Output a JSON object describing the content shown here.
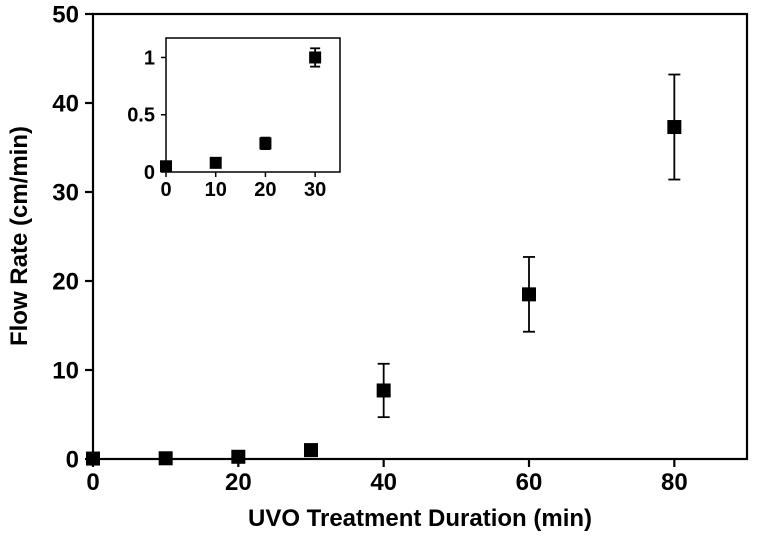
{
  "chart_data": {
    "type": "scatter",
    "title": "",
    "xlabel": "UVO Treatment Duration (min)",
    "ylabel": "Flow Rate (cm/min)",
    "xlim": [
      0,
      90
    ],
    "ylim": [
      0,
      50
    ],
    "xticks": [
      0,
      20,
      40,
      60,
      80
    ],
    "yticks": [
      0,
      10,
      20,
      30,
      40,
      50
    ],
    "grid": false,
    "legend": "none",
    "marker": "filled-square",
    "marker_color": "#000000",
    "error_bars": true,
    "series": [
      {
        "name": "flow-rate-vs-uvo-duration",
        "points": [
          {
            "x": 0,
            "y": 0.05,
            "err": 0
          },
          {
            "x": 10,
            "y": 0.08,
            "err": 0
          },
          {
            "x": 20,
            "y": 0.25,
            "err": 0.05
          },
          {
            "x": 30,
            "y": 1.0,
            "err": 0.08
          },
          {
            "x": 40,
            "y": 7.7,
            "err": 3.0
          },
          {
            "x": 60,
            "y": 18.5,
            "err": 4.2
          },
          {
            "x": 80,
            "y": 37.3,
            "err": 5.9
          }
        ]
      }
    ],
    "inset": {
      "description": "zoomed view of 0-30 min region of the same series",
      "xlim": [
        0,
        35
      ],
      "ylim": [
        0,
        1.17
      ],
      "xticks": [
        0,
        10,
        20,
        30
      ],
      "yticks": [
        0,
        0.5,
        1
      ]
    }
  }
}
